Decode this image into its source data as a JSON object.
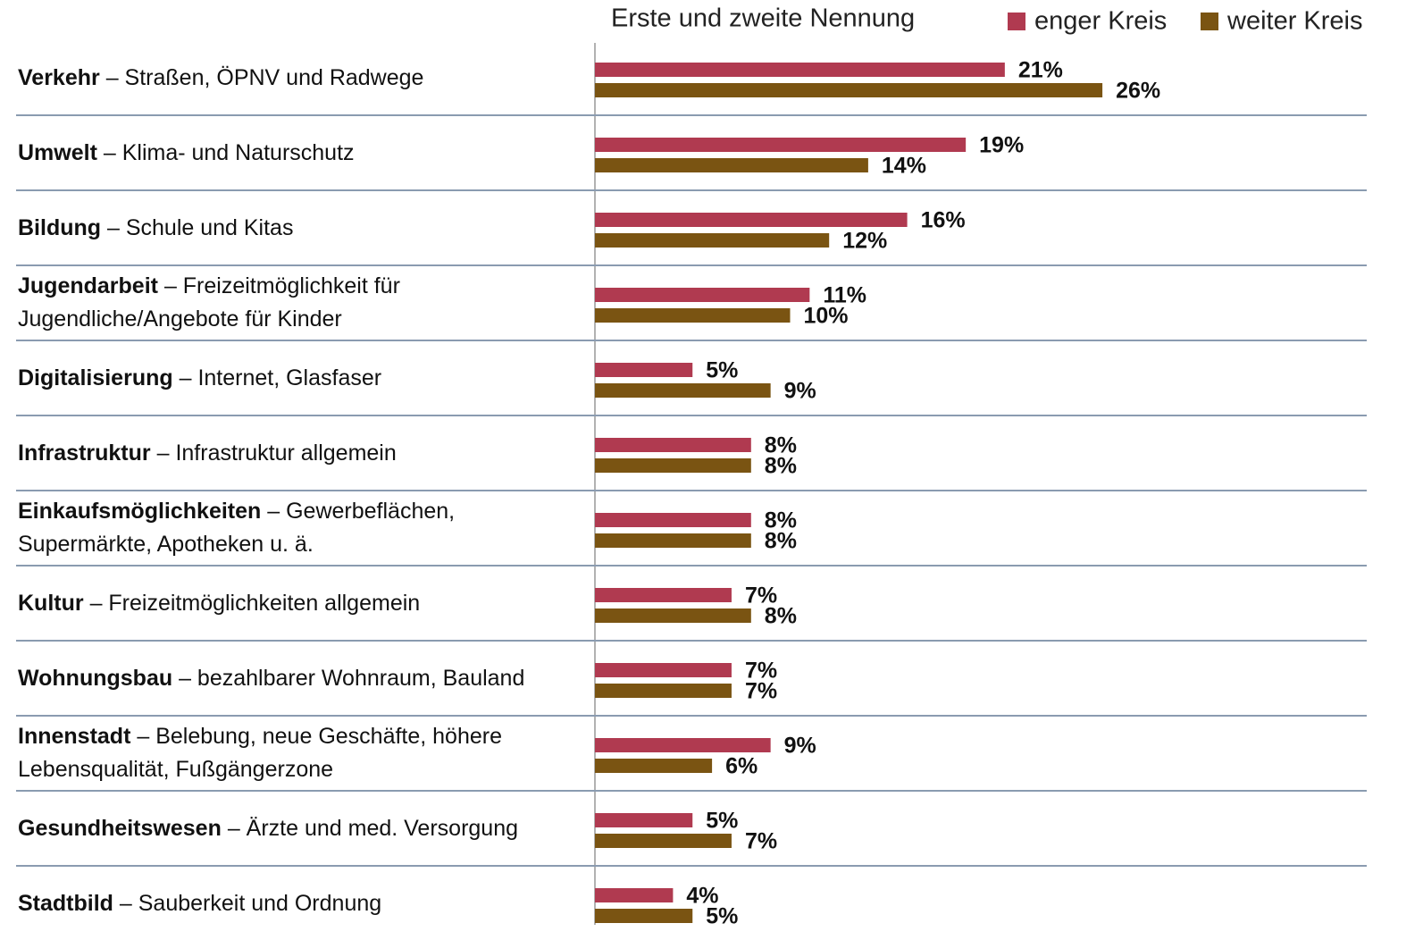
{
  "chart_data": {
    "type": "bar",
    "orientation": "horizontal",
    "title": "Erste und zweite Nennung",
    "categories": [
      [
        "Verkehr",
        "– Straßen, ÖPNV und Radwege"
      ],
      [
        "Umwelt",
        "– Klima- und Naturschutz"
      ],
      [
        "Bildung",
        "– Schule und Kitas"
      ],
      [
        "Jugendarbeit",
        "– Freizeitmöglichkeit für Jugendliche/Angebote für Kinder"
      ],
      [
        "Digitalisierung",
        "– Internet, Glasfaser"
      ],
      [
        "Infrastruktur",
        "– Infrastruktur allgemein"
      ],
      [
        "Einkaufsmöglichkeiten",
        "– Gewerbeflächen, Supermärkte, Apotheken u. ä."
      ],
      [
        "Kultur",
        "– Freizeitmöglichkeiten allgemein"
      ],
      [
        "Wohnungsbau",
        "– bezahlbarer Wohnraum, Bauland"
      ],
      [
        "Innenstadt",
        "– Belebung, neue Geschäfte, höhere Lebensqualität, Fußgängerzone"
      ],
      [
        "Gesundheitswesen",
        "– Ärzte und med. Versorgung"
      ],
      [
        "Stadtbild",
        "– Sauberkeit und Ordnung"
      ]
    ],
    "series": [
      {
        "name": "enger Kreis",
        "color": "#b03a50",
        "values": [
          21,
          19,
          16,
          11,
          5,
          8,
          8,
          7,
          7,
          9,
          5,
          4
        ],
        "value_labels": [
          "21%",
          "19%",
          "16%",
          "11%",
          "5%",
          "8%",
          "8%",
          "7%",
          "7%",
          "9%",
          "5%",
          "4%"
        ]
      },
      {
        "name": "weiter Kreis",
        "color": "#7a5412",
        "values": [
          26,
          14,
          12,
          10,
          9,
          8,
          8,
          8,
          7,
          6,
          7,
          5
        ],
        "value_labels": [
          "26%",
          "14%",
          "12%",
          "10%",
          "9%",
          "8%",
          "8%",
          "8%",
          "7%",
          "6%",
          "7%",
          "5%"
        ]
      }
    ],
    "xlim": [
      0,
      40
    ],
    "legend": "top-right"
  }
}
